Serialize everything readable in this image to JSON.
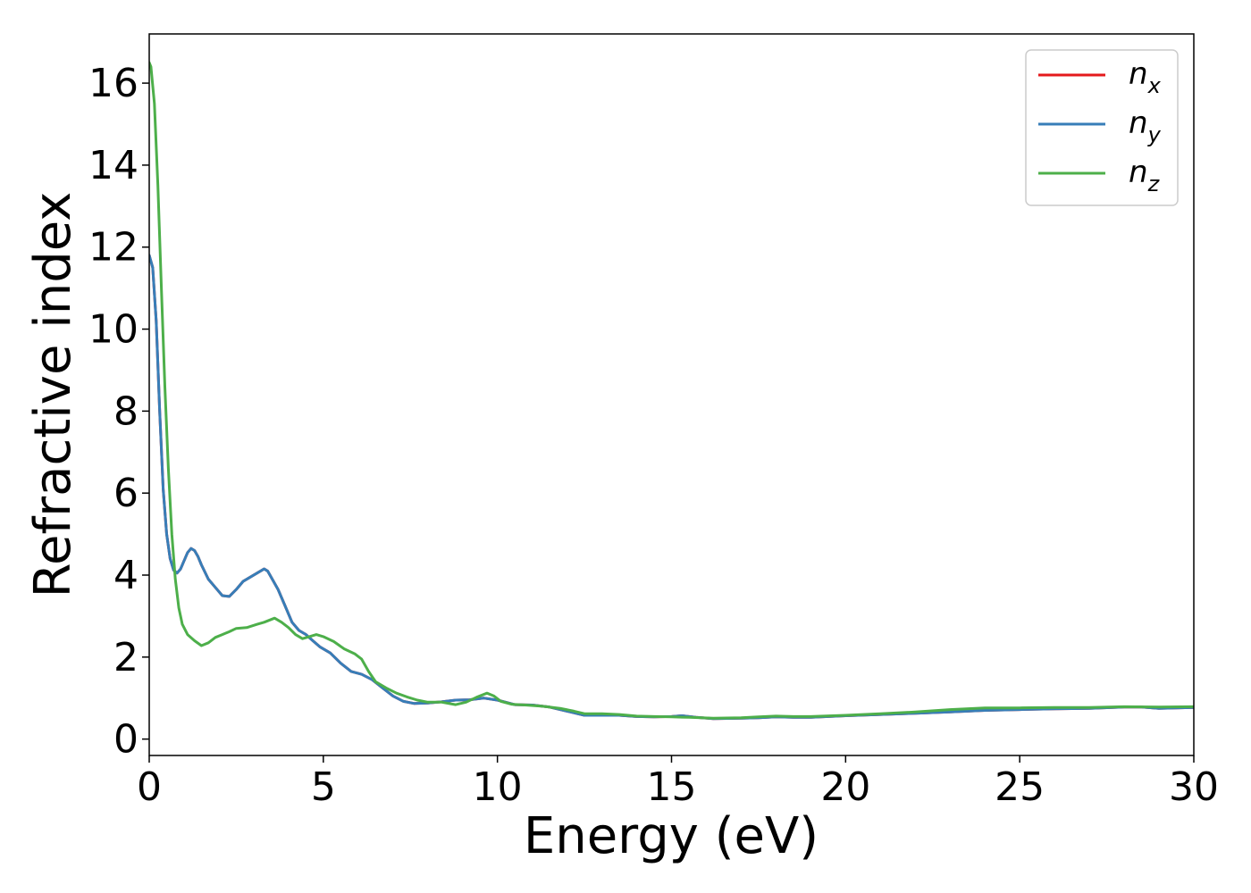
{
  "chart_data": {
    "type": "line",
    "title": "",
    "xlabel": "Energy (eV)",
    "ylabel": "Refractive index",
    "xlim": [
      0,
      30
    ],
    "ylim": [
      -0.4,
      17.2
    ],
    "xticks": [
      0,
      5,
      10,
      15,
      20,
      25,
      30
    ],
    "yticks": [
      0,
      2,
      4,
      6,
      8,
      10,
      12,
      14,
      16
    ],
    "grid": false,
    "legend_position": "top-right",
    "series": [
      {
        "name": "n_x",
        "label_main": "n",
        "label_sub": "x",
        "color": "#e41a1c",
        "points": [
          [
            0,
            11.8
          ],
          [
            0.1,
            11.5
          ],
          [
            0.2,
            10.2
          ],
          [
            0.3,
            8.0
          ],
          [
            0.4,
            6.1
          ],
          [
            0.5,
            5.0
          ],
          [
            0.6,
            4.4
          ],
          [
            0.7,
            4.12
          ],
          [
            0.8,
            4.05
          ],
          [
            0.9,
            4.15
          ],
          [
            1.0,
            4.35
          ],
          [
            1.1,
            4.55
          ],
          [
            1.2,
            4.65
          ],
          [
            1.3,
            4.6
          ],
          [
            1.4,
            4.45
          ],
          [
            1.5,
            4.25
          ],
          [
            1.7,
            3.9
          ],
          [
            1.9,
            3.7
          ],
          [
            2.1,
            3.5
          ],
          [
            2.3,
            3.48
          ],
          [
            2.5,
            3.65
          ],
          [
            2.7,
            3.85
          ],
          [
            2.9,
            3.95
          ],
          [
            3.1,
            4.05
          ],
          [
            3.3,
            4.15
          ],
          [
            3.4,
            4.1
          ],
          [
            3.5,
            3.95
          ],
          [
            3.7,
            3.65
          ],
          [
            3.9,
            3.25
          ],
          [
            4.1,
            2.85
          ],
          [
            4.3,
            2.65
          ],
          [
            4.5,
            2.55
          ],
          [
            4.7,
            2.4
          ],
          [
            4.9,
            2.25
          ],
          [
            5.2,
            2.1
          ],
          [
            5.5,
            1.85
          ],
          [
            5.8,
            1.65
          ],
          [
            6.1,
            1.58
          ],
          [
            6.4,
            1.45
          ],
          [
            6.7,
            1.25
          ],
          [
            7.0,
            1.05
          ],
          [
            7.3,
            0.92
          ],
          [
            7.6,
            0.87
          ],
          [
            8.0,
            0.88
          ],
          [
            8.4,
            0.91
          ],
          [
            8.8,
            0.95
          ],
          [
            9.2,
            0.96
          ],
          [
            9.6,
            1.0
          ],
          [
            10.0,
            0.95
          ],
          [
            10.5,
            0.84
          ],
          [
            11.0,
            0.83
          ],
          [
            11.5,
            0.78
          ],
          [
            12.0,
            0.68
          ],
          [
            12.5,
            0.58
          ],
          [
            13.0,
            0.58
          ],
          [
            13.5,
            0.58
          ],
          [
            14.0,
            0.55
          ],
          [
            14.5,
            0.54
          ],
          [
            15.0,
            0.55
          ],
          [
            15.3,
            0.57
          ],
          [
            15.7,
            0.53
          ],
          [
            16.2,
            0.5
          ],
          [
            17.0,
            0.51
          ],
          [
            17.5,
            0.52
          ],
          [
            18.0,
            0.54
          ],
          [
            18.5,
            0.53
          ],
          [
            19.0,
            0.53
          ],
          [
            20.0,
            0.57
          ],
          [
            21.0,
            0.6
          ],
          [
            22.0,
            0.63
          ],
          [
            23.0,
            0.66
          ],
          [
            24.0,
            0.7
          ],
          [
            25.0,
            0.72
          ],
          [
            26.0,
            0.74
          ],
          [
            27.0,
            0.75
          ],
          [
            28.0,
            0.78
          ],
          [
            28.5,
            0.78
          ],
          [
            29.0,
            0.75
          ],
          [
            29.5,
            0.76
          ],
          [
            30.0,
            0.77
          ]
        ]
      },
      {
        "name": "n_y",
        "label_main": "n",
        "label_sub": "y",
        "color": "#377eb8",
        "points": [
          [
            0,
            11.8
          ],
          [
            0.1,
            11.5
          ],
          [
            0.2,
            10.2
          ],
          [
            0.3,
            8.0
          ],
          [
            0.4,
            6.1
          ],
          [
            0.5,
            5.0
          ],
          [
            0.6,
            4.4
          ],
          [
            0.7,
            4.12
          ],
          [
            0.8,
            4.05
          ],
          [
            0.9,
            4.15
          ],
          [
            1.0,
            4.35
          ],
          [
            1.1,
            4.55
          ],
          [
            1.2,
            4.65
          ],
          [
            1.3,
            4.6
          ],
          [
            1.4,
            4.45
          ],
          [
            1.5,
            4.25
          ],
          [
            1.7,
            3.9
          ],
          [
            1.9,
            3.7
          ],
          [
            2.1,
            3.5
          ],
          [
            2.3,
            3.48
          ],
          [
            2.5,
            3.65
          ],
          [
            2.7,
            3.85
          ],
          [
            2.9,
            3.95
          ],
          [
            3.1,
            4.05
          ],
          [
            3.3,
            4.15
          ],
          [
            3.4,
            4.1
          ],
          [
            3.5,
            3.95
          ],
          [
            3.7,
            3.65
          ],
          [
            3.9,
            3.25
          ],
          [
            4.1,
            2.85
          ],
          [
            4.3,
            2.65
          ],
          [
            4.5,
            2.55
          ],
          [
            4.7,
            2.4
          ],
          [
            4.9,
            2.25
          ],
          [
            5.2,
            2.1
          ],
          [
            5.5,
            1.85
          ],
          [
            5.8,
            1.65
          ],
          [
            6.1,
            1.58
          ],
          [
            6.4,
            1.45
          ],
          [
            6.7,
            1.25
          ],
          [
            7.0,
            1.05
          ],
          [
            7.3,
            0.92
          ],
          [
            7.6,
            0.87
          ],
          [
            8.0,
            0.88
          ],
          [
            8.4,
            0.91
          ],
          [
            8.8,
            0.95
          ],
          [
            9.2,
            0.96
          ],
          [
            9.6,
            1.0
          ],
          [
            10.0,
            0.95
          ],
          [
            10.5,
            0.84
          ],
          [
            11.0,
            0.83
          ],
          [
            11.5,
            0.78
          ],
          [
            12.0,
            0.68
          ],
          [
            12.5,
            0.58
          ],
          [
            13.0,
            0.58
          ],
          [
            13.5,
            0.58
          ],
          [
            14.0,
            0.55
          ],
          [
            14.5,
            0.54
          ],
          [
            15.0,
            0.55
          ],
          [
            15.3,
            0.57
          ],
          [
            15.7,
            0.53
          ],
          [
            16.2,
            0.5
          ],
          [
            17.0,
            0.51
          ],
          [
            17.5,
            0.52
          ],
          [
            18.0,
            0.54
          ],
          [
            18.5,
            0.53
          ],
          [
            19.0,
            0.53
          ],
          [
            20.0,
            0.57
          ],
          [
            21.0,
            0.6
          ],
          [
            22.0,
            0.63
          ],
          [
            23.0,
            0.66
          ],
          [
            24.0,
            0.7
          ],
          [
            25.0,
            0.72
          ],
          [
            26.0,
            0.74
          ],
          [
            27.0,
            0.75
          ],
          [
            28.0,
            0.78
          ],
          [
            28.5,
            0.78
          ],
          [
            29.0,
            0.75
          ],
          [
            29.5,
            0.76
          ],
          [
            30.0,
            0.77
          ]
        ]
      },
      {
        "name": "n_z",
        "label_main": "n",
        "label_sub": "z",
        "color": "#4daf4a",
        "points": [
          [
            0,
            16.5
          ],
          [
            0.05,
            16.4
          ],
          [
            0.15,
            15.5
          ],
          [
            0.25,
            13.5
          ],
          [
            0.35,
            11.0
          ],
          [
            0.45,
            8.6
          ],
          [
            0.55,
            6.6
          ],
          [
            0.65,
            5.0
          ],
          [
            0.75,
            3.9
          ],
          [
            0.85,
            3.2
          ],
          [
            0.95,
            2.8
          ],
          [
            1.1,
            2.55
          ],
          [
            1.3,
            2.4
          ],
          [
            1.5,
            2.28
          ],
          [
            1.7,
            2.35
          ],
          [
            1.9,
            2.48
          ],
          [
            2.1,
            2.55
          ],
          [
            2.3,
            2.62
          ],
          [
            2.5,
            2.7
          ],
          [
            2.8,
            2.72
          ],
          [
            3.1,
            2.8
          ],
          [
            3.3,
            2.85
          ],
          [
            3.6,
            2.95
          ],
          [
            3.8,
            2.85
          ],
          [
            4.0,
            2.72
          ],
          [
            4.2,
            2.55
          ],
          [
            4.4,
            2.45
          ],
          [
            4.6,
            2.5
          ],
          [
            4.8,
            2.55
          ],
          [
            5.0,
            2.5
          ],
          [
            5.3,
            2.38
          ],
          [
            5.6,
            2.2
          ],
          [
            5.9,
            2.08
          ],
          [
            6.1,
            1.95
          ],
          [
            6.3,
            1.65
          ],
          [
            6.5,
            1.4
          ],
          [
            6.8,
            1.25
          ],
          [
            7.1,
            1.12
          ],
          [
            7.4,
            1.03
          ],
          [
            7.7,
            0.95
          ],
          [
            8.0,
            0.9
          ],
          [
            8.4,
            0.9
          ],
          [
            8.8,
            0.84
          ],
          [
            9.1,
            0.9
          ],
          [
            9.4,
            1.02
          ],
          [
            9.7,
            1.12
          ],
          [
            9.9,
            1.05
          ],
          [
            10.1,
            0.92
          ],
          [
            10.4,
            0.85
          ],
          [
            10.8,
            0.83
          ],
          [
            11.3,
            0.8
          ],
          [
            11.8,
            0.75
          ],
          [
            12.2,
            0.68
          ],
          [
            12.5,
            0.62
          ],
          [
            13.0,
            0.62
          ],
          [
            13.5,
            0.6
          ],
          [
            14.0,
            0.56
          ],
          [
            14.5,
            0.55
          ],
          [
            15.0,
            0.54
          ],
          [
            15.5,
            0.53
          ],
          [
            16.2,
            0.51
          ],
          [
            17.0,
            0.52
          ],
          [
            17.5,
            0.54
          ],
          [
            18.0,
            0.56
          ],
          [
            18.5,
            0.55
          ],
          [
            19.0,
            0.55
          ],
          [
            20.0,
            0.58
          ],
          [
            21.0,
            0.62
          ],
          [
            22.0,
            0.66
          ],
          [
            23.0,
            0.72
          ],
          [
            24.0,
            0.76
          ],
          [
            25.0,
            0.76
          ],
          [
            26.0,
            0.77
          ],
          [
            27.0,
            0.77
          ],
          [
            28.0,
            0.79
          ],
          [
            29.0,
            0.78
          ],
          [
            30.0,
            0.79
          ]
        ]
      }
    ]
  }
}
